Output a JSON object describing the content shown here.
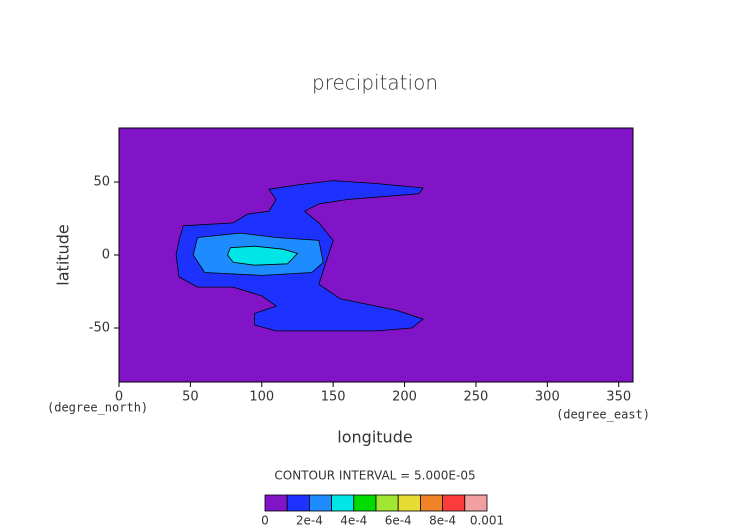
{
  "chart_data": {
    "type": "contour",
    "title": "precipitation",
    "xlabel": "longitude",
    "ylabel": "latitude",
    "xunit": "(degree_east)",
    "yunit": "(degree_north)",
    "xlim": [
      0,
      360
    ],
    "ylim": [
      -87,
      87
    ],
    "xticks": [
      0,
      50,
      100,
      150,
      200,
      250,
      300,
      350
    ],
    "yticks": [
      -50,
      0,
      50
    ],
    "background": "#8214c8",
    "annotation": "CONTOUR INTERVAL = 5.000E-05",
    "regions": [
      {
        "level": 0.0001,
        "color": "#1e32ff",
        "points": [
          [
            45,
            20
          ],
          [
            80,
            22
          ],
          [
            90,
            28
          ],
          [
            105,
            30
          ],
          [
            110,
            38
          ],
          [
            105,
            45
          ],
          [
            125,
            48
          ],
          [
            150,
            51
          ],
          [
            180,
            49
          ],
          [
            213,
            46
          ],
          [
            210,
            42
          ],
          [
            185,
            40
          ],
          [
            160,
            38
          ],
          [
            140,
            35
          ],
          [
            130,
            30
          ],
          [
            140,
            22
          ],
          [
            150,
            10
          ],
          [
            145,
            -5
          ],
          [
            140,
            -20
          ],
          [
            155,
            -30
          ],
          [
            175,
            -34
          ],
          [
            195,
            -38
          ],
          [
            213,
            -44
          ],
          [
            205,
            -50
          ],
          [
            180,
            -52
          ],
          [
            150,
            -52
          ],
          [
            110,
            -52
          ],
          [
            95,
            -48
          ],
          [
            95,
            -40
          ],
          [
            110,
            -35
          ],
          [
            100,
            -28
          ],
          [
            80,
            -22
          ],
          [
            55,
            -22
          ],
          [
            42,
            -15
          ],
          [
            40,
            0
          ],
          [
            42,
            10
          ]
        ]
      },
      {
        "level": 0.0002,
        "color": "#1e8cff",
        "points": [
          [
            55,
            12
          ],
          [
            85,
            15
          ],
          [
            110,
            12
          ],
          [
            140,
            10
          ],
          [
            143,
            -5
          ],
          [
            135,
            -12
          ],
          [
            100,
            -14
          ],
          [
            60,
            -12
          ],
          [
            52,
            0
          ]
        ]
      },
      {
        "level": 0.0003,
        "color": "#00e6e6",
        "points": [
          [
            78,
            5
          ],
          [
            95,
            6
          ],
          [
            115,
            4
          ],
          [
            125,
            1
          ],
          [
            118,
            -6
          ],
          [
            95,
            -7
          ],
          [
            80,
            -5
          ],
          [
            76,
            0
          ]
        ]
      }
    ],
    "colorbar": {
      "bounds": [
        0,
        0.0001,
        0.0002,
        0.0003,
        0.0004,
        0.0005,
        0.0006,
        0.0007,
        0.0008,
        0.0009,
        0.001
      ],
      "colors": [
        "#8214c8",
        "#1e32ff",
        "#1e8cff",
        "#00e6e6",
        "#00dc00",
        "#a0e632",
        "#e6dc32",
        "#f08228",
        "#fa3c3c",
        "#f0a0a0"
      ],
      "ticks": [
        0,
        {
          "value": 0.0002,
          "label": "2e-4"
        },
        {
          "value": 0.0004,
          "label": "4e-4"
        },
        {
          "value": 0.0006,
          "label": "6e-4"
        },
        {
          "value": 0.0008,
          "label": "8e-4"
        },
        0.001
      ]
    }
  }
}
